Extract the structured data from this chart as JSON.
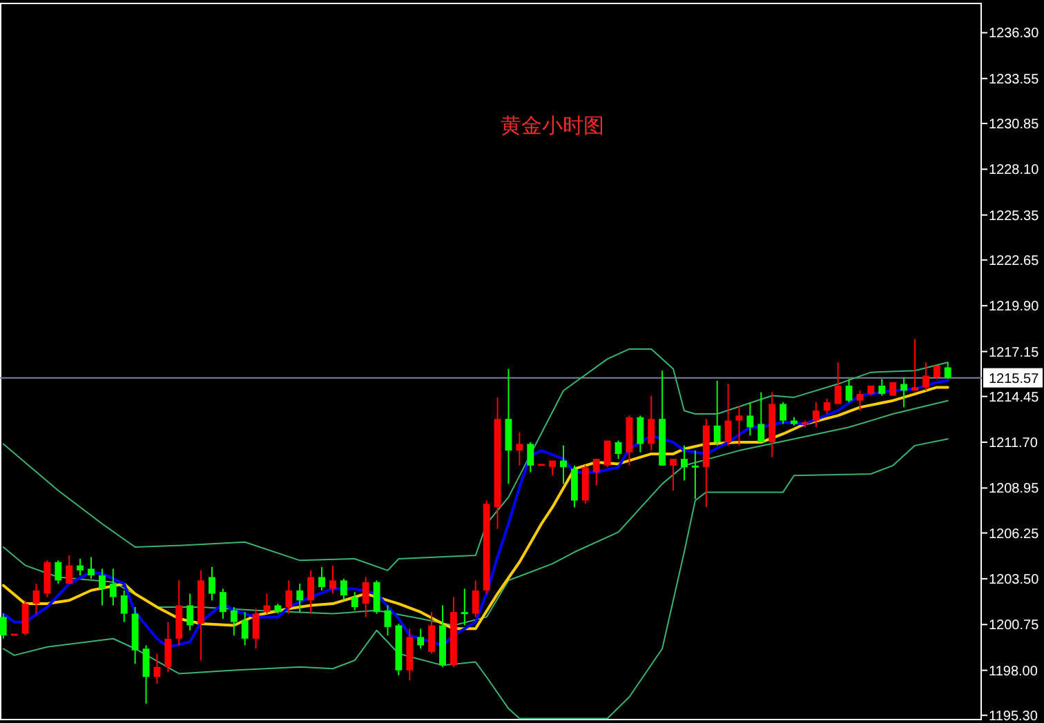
{
  "chart_data": {
    "type": "candlestick",
    "title": "黄金小时图",
    "categories": [
      null,
      null,
      null,
      null,
      null,
      null,
      null,
      null,
      null,
      null,
      null,
      null,
      null,
      null,
      null,
      null,
      null,
      null,
      null,
      null,
      null,
      null,
      null,
      null,
      null,
      null,
      null,
      null,
      null,
      null,
      null,
      null,
      null,
      null,
      null,
      null,
      null,
      null,
      null,
      null,
      null,
      null,
      null,
      null,
      null,
      null,
      null,
      null,
      null,
      null,
      null,
      null,
      null,
      null,
      null,
      null,
      null,
      null,
      null,
      null,
      null,
      null,
      null,
      null,
      null,
      null,
      null,
      null,
      null,
      null,
      null,
      null,
      null,
      null,
      null,
      null,
      null,
      null,
      null,
      null,
      null,
      null,
      null,
      null,
      null,
      null,
      null
    ],
    "ohlc": [
      [
        1201.2,
        1201.4,
        1199.9,
        1200.1
      ],
      [
        1200.1,
        1200.2,
        1200.1,
        1200.2
      ],
      [
        1200.2,
        1202.2,
        1200.1,
        1202.0
      ],
      [
        1202.0,
        1203.2,
        1201.4,
        1202.8
      ],
      [
        1202.6,
        1204.6,
        1202.4,
        1204.5
      ],
      [
        1204.5,
        1204.6,
        1203.2,
        1203.4
      ],
      [
        1203.2,
        1204.9,
        1203.2,
        1204.3
      ],
      [
        1204.3,
        1204.7,
        1203.7,
        1204.0
      ],
      [
        1204.1,
        1204.8,
        1203.5,
        1203.7
      ],
      [
        1203.7,
        1204.1,
        1201.9,
        1202.9
      ],
      [
        1203.2,
        1204.1,
        1201.9,
        1202.4
      ],
      [
        1202.5,
        1202.8,
        1200.9,
        1201.4
      ],
      [
        1201.4,
        1201.8,
        1198.4,
        1199.2
      ],
      [
        1199.3,
        1199.5,
        1196.0,
        1197.6
      ],
      [
        1197.6,
        1199.0,
        1197.2,
        1198.2
      ],
      [
        1198.2,
        1200.9,
        1197.9,
        1199.9
      ],
      [
        1199.9,
        1203.4,
        1199.5,
        1201.9
      ],
      [
        1201.9,
        1202.6,
        1200.4,
        1200.7
      ],
      [
        1200.8,
        1204.0,
        1198.6,
        1203.4
      ],
      [
        1203.6,
        1204.2,
        1202.2,
        1202.6
      ],
      [
        1202.7,
        1202.9,
        1201.1,
        1201.5
      ],
      [
        1201.6,
        1201.8,
        1200.1,
        1200.9
      ],
      [
        1201.0,
        1201.5,
        1199.5,
        1199.9
      ],
      [
        1199.9,
        1201.7,
        1199.3,
        1201.4
      ],
      [
        1201.5,
        1202.6,
        1201.4,
        1201.9
      ],
      [
        1201.9,
        1202.0,
        1201.4,
        1201.5
      ],
      [
        1201.8,
        1203.4,
        1201.4,
        1202.8
      ],
      [
        1202.8,
        1203.2,
        1201.5,
        1202.2
      ],
      [
        1202.2,
        1204.0,
        1201.4,
        1203.6
      ],
      [
        1203.6,
        1204.2,
        1202.8,
        1203.0
      ],
      [
        1202.9,
        1204.3,
        1202.6,
        1203.4
      ],
      [
        1203.4,
        1203.5,
        1202.2,
        1202.5
      ],
      [
        1202.4,
        1202.7,
        1201.6,
        1201.8
      ],
      [
        1202.0,
        1203.6,
        1201.2,
        1203.3
      ],
      [
        1203.3,
        1203.4,
        1201.4,
        1201.5
      ],
      [
        1201.6,
        1201.9,
        1200.1,
        1200.6
      ],
      [
        1200.7,
        1200.8,
        1197.7,
        1198.0
      ],
      [
        1198.0,
        1200.5,
        1197.4,
        1200.0
      ],
      [
        1200.0,
        1200.5,
        1199.3,
        1199.5
      ],
      [
        1199.1,
        1201.5,
        1199.0,
        1200.7
      ],
      [
        1200.7,
        1201.9,
        1198.2,
        1198.3
      ],
      [
        1198.3,
        1202.4,
        1198.2,
        1201.5
      ],
      [
        1201.5,
        1202.9,
        1200.7,
        1201.4
      ],
      [
        1201.4,
        1203.4,
        1201.2,
        1202.8
      ],
      [
        1202.8,
        1208.2,
        1202.6,
        1208.0
      ],
      [
        1207.8,
        1214.4,
        1206.5,
        1213.1
      ],
      [
        1213.1,
        1216.1,
        1209.2,
        1211.2
      ],
      [
        1211.2,
        1212.3,
        1210.3,
        1211.6
      ],
      [
        1211.6,
        1211.7,
        1209.9,
        1210.3
      ],
      [
        1210.3,
        1210.4,
        1210.3,
        1210.4
      ],
      [
        1210.2,
        1210.6,
        1209.7,
        1210.6
      ],
      [
        1210.6,
        1211.5,
        1209.2,
        1210.2
      ],
      [
        1210.1,
        1210.3,
        1207.8,
        1208.2
      ],
      [
        1208.2,
        1210.3,
        1208.0,
        1210.2
      ],
      [
        1209.9,
        1210.7,
        1209.1,
        1210.7
      ],
      [
        1210.3,
        1211.8,
        1210.2,
        1211.8
      ],
      [
        1211.7,
        1211.8,
        1210.7,
        1211.0
      ],
      [
        1211.1,
        1213.3,
        1210.3,
        1213.2
      ],
      [
        1213.2,
        1213.3,
        1211.1,
        1211.6
      ],
      [
        1211.6,
        1214.5,
        1211.2,
        1213.1
      ],
      [
        1213.1,
        1216.0,
        1210.3,
        1210.3
      ],
      [
        1210.3,
        1210.7,
        1208.8,
        1210.7
      ],
      [
        1210.7,
        1211.5,
        1209.4,
        1210.2
      ],
      [
        1210.3,
        1211.2,
        1208.3,
        1210.2
      ],
      [
        1210.2,
        1213.1,
        1207.8,
        1212.7
      ],
      [
        1212.7,
        1215.4,
        1211.5,
        1211.7
      ],
      [
        1211.7,
        1215.2,
        1211.5,
        1213.0
      ],
      [
        1213.0,
        1213.9,
        1211.5,
        1213.3
      ],
      [
        1213.3,
        1214.1,
        1212.1,
        1212.6
      ],
      [
        1212.8,
        1214.7,
        1211.7,
        1211.7
      ],
      [
        1211.7,
        1214.7,
        1210.8,
        1214.0
      ],
      [
        1214.0,
        1214.1,
        1212.8,
        1213.0
      ],
      [
        1213.0,
        1213.2,
        1212.7,
        1212.8
      ],
      [
        1212.8,
        1213.0,
        1212.6,
        1212.9
      ],
      [
        1213.0,
        1214.1,
        1212.6,
        1213.6
      ],
      [
        1213.6,
        1214.3,
        1213.4,
        1214.1
      ],
      [
        1214.0,
        1216.5,
        1214.0,
        1215.1
      ],
      [
        1215.1,
        1215.5,
        1214.1,
        1214.2
      ],
      [
        1214.2,
        1214.8,
        1213.6,
        1214.6
      ],
      [
        1214.6,
        1215.1,
        1214.5,
        1215.1
      ],
      [
        1215.1,
        1215.5,
        1214.5,
        1214.6
      ],
      [
        1214.5,
        1215.3,
        1214.5,
        1215.3
      ],
      [
        1215.2,
        1215.6,
        1213.8,
        1214.8
      ],
      [
        1214.8,
        1217.9,
        1214.8,
        1215.0
      ],
      [
        1215.0,
        1216.5,
        1214.8,
        1215.7
      ],
      [
        1215.6,
        1216.3,
        1215.5,
        1216.3
      ],
      [
        1216.2,
        1216.5,
        1215.5,
        1215.57
      ]
    ],
    "colors": [
      "#00ff00",
      "#ff0000",
      "#ff0000",
      "#ff0000",
      "#ff0000",
      "#00ff00",
      "#ff0000",
      "#00ff00",
      "#00ff00",
      "#00ff00",
      "#00ff00",
      "#00ff00",
      "#00ff00",
      "#00ff00",
      "#ff0000",
      "#ff0000",
      "#ff0000",
      "#00ff00",
      "#ff0000",
      "#00ff00",
      "#00ff00",
      "#00ff00",
      "#00ff00",
      "#ff0000",
      "#ff0000",
      "#00ff00",
      "#ff0000",
      "#00ff00",
      "#ff0000",
      "#00ff00",
      "#ff0000",
      "#00ff00",
      "#00ff00",
      "#ff0000",
      "#00ff00",
      "#00ff00",
      "#00ff00",
      "#ff0000",
      "#00ff00",
      "#ff0000",
      "#00ff00",
      "#ff0000",
      "#00ff00",
      "#ff0000",
      "#ff0000",
      "#ff0000",
      "#00ff00",
      "#ff0000",
      "#00ff00",
      "#ff0000",
      "#ff0000",
      "#00ff00",
      "#00ff00",
      "#ff0000",
      "#ff0000",
      "#ff0000",
      "#00ff00",
      "#ff0000",
      "#00ff00",
      "#ff0000",
      "#00ff00",
      "#ff0000",
      "#00ff00",
      "#00ff00",
      "#ff0000",
      "#00ff00",
      "#ff0000",
      "#ff0000",
      "#00ff00",
      "#00ff00",
      "#ff0000",
      "#00ff00",
      "#00ff00",
      "#ff0000",
      "#ff0000",
      "#ff0000",
      "#ff0000",
      "#00ff00",
      "#ff0000",
      "#ff0000",
      "#00ff00",
      "#ff0000",
      "#00ff00",
      "#ff0000",
      "#ff0000",
      "#ff0000",
      "#00ff00"
    ],
    "series": [
      {
        "type": "line",
        "color": "#3cb371",
        "values": [
          1211.6,
          null,
          null,
          null,
          null,
          1208.8,
          null,
          null,
          null,
          1206.8,
          null,
          null,
          1205.4,
          null,
          null,
          null,
          1205.5,
          null,
          null,
          null,
          null,
          null,
          1205.7,
          null,
          null,
          null,
          null,
          1204.6,
          null,
          null,
          null,
          null,
          1204.7,
          null,
          null,
          1204.0,
          1204.7,
          null,
          null,
          null,
          null,
          null,
          null,
          1204.9,
          1206.8,
          null,
          1208.4,
          null,
          null,
          null,
          null,
          1214.8,
          null,
          null,
          null,
          1216.7,
          null,
          1217.3,
          null,
          1217.3,
          null,
          1216.1,
          1213.6,
          1213.4,
          null,
          1213.4,
          null,
          null,
          null,
          null,
          1214.5,
          null,
          1214.4,
          null,
          null,
          null,
          1215.2,
          null,
          null,
          1215.9,
          null,
          null,
          null,
          1216.0,
          null,
          null,
          1216.5
        ]
      },
      {
        "type": "line",
        "color": "#3cb371",
        "values": [
          1205.4,
          null,
          1204.3,
          null,
          null,
          1203.6,
          null,
          null,
          null,
          null,
          1203.3,
          null,
          null,
          null,
          1201.8,
          null,
          null,
          null,
          1201.8,
          null,
          null,
          null,
          null,
          1201.6,
          null,
          null,
          null,
          null,
          null,
          null,
          1201.4,
          null,
          null,
          null,
          1201.6,
          null,
          null,
          null,
          1201.1,
          null,
          null,
          1200.7,
          null,
          null,
          1201.2,
          null,
          1203.4,
          null,
          null,
          null,
          1204.4,
          null,
          1205.1,
          null,
          null,
          null,
          1206.3,
          null,
          null,
          null,
          1209.2,
          null,
          1210.3,
          null,
          null,
          null,
          null,
          1211.2,
          null,
          null,
          null,
          null,
          1211.9,
          null,
          null,
          null,
          null,
          1212.6,
          null,
          null,
          null,
          1213.4,
          null,
          null,
          null,
          null,
          1214.2
        ]
      },
      {
        "type": "line",
        "color": "#3cb371",
        "values": [
          1199.3,
          1198.9,
          null,
          null,
          1199.4,
          null,
          null,
          null,
          null,
          null,
          1199.9,
          null,
          1199.3,
          null,
          null,
          null,
          1197.8,
          null,
          null,
          null,
          null,
          1198.0,
          null,
          null,
          null,
          null,
          null,
          1198.2,
          null,
          null,
          1198.1,
          null,
          1198.6,
          null,
          1200.4,
          null,
          1199.0,
          null,
          null,
          null,
          1198.3,
          null,
          null,
          1198.5,
          1197.6,
          null,
          1195.7,
          1195.1,
          null,
          null,
          null,
          null,
          null,
          null,
          null,
          1195.1,
          null,
          1196.4,
          null,
          null,
          1199.3,
          null,
          1205.1,
          1208.2,
          1208.7,
          null,
          null,
          null,
          null,
          null,
          null,
          1208.7,
          1209.7,
          null,
          null,
          null,
          null,
          null,
          null,
          1209.8,
          null,
          1210.3,
          null,
          1211.5,
          null,
          null,
          1211.9
        ]
      },
      {
        "type": "line",
        "color": "#ffcc00",
        "values": [
          1203.1,
          null,
          1202.0,
          null,
          1202.0,
          null,
          1202.2,
          null,
          1202.8,
          null,
          null,
          1203.2,
          1202.6,
          null,
          1201.8,
          null,
          1201.1,
          null,
          1200.8,
          null,
          null,
          1200.7,
          null,
          1201.3,
          null,
          null,
          1201.7,
          null,
          1201.9,
          null,
          1202.0,
          null,
          null,
          1202.6,
          null,
          null,
          1202.0,
          null,
          1201.5,
          null,
          1200.8,
          1200.5,
          null,
          1200.5,
          null,
          1202.6,
          null,
          1204.5,
          null,
          1206.8,
          1207.8,
          null,
          1210.1,
          null,
          1210.5,
          null,
          1210.4,
          null,
          null,
          1211.0,
          null,
          1211.0,
          1211.3,
          null,
          1211.6,
          null,
          null,
          1211.7,
          null,
          1211.7,
          null,
          1212.2,
          null,
          1212.8,
          null,
          null,
          1213.3,
          null,
          1213.8,
          null,
          null,
          1214.2,
          null,
          1214.6,
          null,
          1215.0,
          1215.0
        ]
      },
      {
        "type": "line",
        "color": "#0000ff",
        "values": [
          1201.4,
          1200.9,
          1200.9,
          null,
          1201.8,
          null,
          1203.2,
          null,
          1203.9,
          1203.8,
          null,
          1203.2,
          1201.5,
          null,
          1199.9,
          1199.4,
          null,
          1199.7,
          1200.9,
          null,
          1202.0,
          1201.6,
          null,
          1201.2,
          null,
          1201.2,
          1201.8,
          null,
          1202.4,
          null,
          1202.9,
          null,
          1202.9,
          null,
          1202.6,
          null,
          1201.1,
          1200.1,
          null,
          null,
          1199.5,
          1200.1,
          null,
          1200.9,
          1202.6,
          1204.8,
          1206.8,
          1209.0,
          1210.9,
          1211.2,
          null,
          1210.7,
          1209.9,
          null,
          1209.9,
          null,
          1210.2,
          1211.3,
          null,
          1212.1,
          null,
          1211.7,
          1211.2,
          null,
          1211.0,
          null,
          1211.7,
          null,
          1212.6,
          1212.6,
          null,
          1212.9,
          null,
          1212.8,
          null,
          null,
          1213.6,
          null,
          1214.5,
          null,
          null,
          1214.8,
          null,
          1214.9,
          null,
          1215.3,
          1215.4
        ]
      }
    ],
    "ylim": [
      1195.0,
      1238.1
    ],
    "yticks": [
      {
        "value": 1236.3,
        "label": "1236.30"
      },
      {
        "value": 1233.55,
        "label": "1233.55"
      },
      {
        "value": 1230.85,
        "label": "1230.85"
      },
      {
        "value": 1228.1,
        "label": "1228.10"
      },
      {
        "value": 1225.35,
        "label": "1225.35"
      },
      {
        "value": 1222.65,
        "label": "1222.65"
      },
      {
        "value": 1219.9,
        "label": "1219.90"
      },
      {
        "value": 1217.15,
        "label": "1217.15"
      },
      {
        "value": 1214.45,
        "label": "1214.45"
      },
      {
        "value": 1211.7,
        "label": "1211.70"
      },
      {
        "value": 1208.95,
        "label": "1208.95"
      },
      {
        "value": 1206.25,
        "label": "1206.25"
      },
      {
        "value": 1203.5,
        "label": "1203.50"
      },
      {
        "value": 1200.75,
        "label": "1200.75"
      },
      {
        "value": 1198.0,
        "label": "1198.00"
      },
      {
        "value": 1195.3,
        "label": "1195.30"
      }
    ],
    "ref_lines": [
      {
        "axis": "y",
        "value": 1215.57,
        "label": "1215.57",
        "color": "#778899"
      }
    ],
    "tick_labels": "y"
  }
}
